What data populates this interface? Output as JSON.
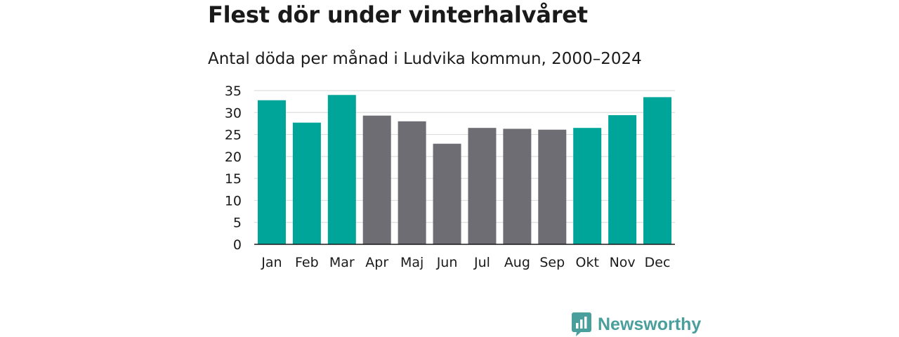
{
  "chart_data": {
    "type": "bar",
    "title": "Flest dör under vinterhalvåret",
    "subtitle": "Antal döda per månad i Ludvika kommun, 2000–2024",
    "categories": [
      "Jan",
      "Feb",
      "Mar",
      "Apr",
      "Maj",
      "Jun",
      "Jul",
      "Aug",
      "Sep",
      "Okt",
      "Nov",
      "Dec"
    ],
    "values": [
      32.8,
      27.7,
      34.0,
      29.3,
      28.0,
      22.9,
      26.5,
      26.3,
      26.1,
      26.5,
      29.4,
      33.5
    ],
    "highlight": [
      true,
      true,
      true,
      false,
      false,
      false,
      false,
      false,
      false,
      true,
      true,
      true
    ],
    "ylim": [
      0,
      35
    ],
    "yticks": [
      0,
      5,
      10,
      15,
      20,
      25,
      30,
      35
    ],
    "grid": true,
    "colors": {
      "highlight": "#00a59a",
      "other": "#6d6d73",
      "grid": "#dddddd",
      "axis": "#1a1a1a"
    }
  },
  "brand": {
    "name": "Newsworthy",
    "logo_icon": "newsworthy-logo-icon",
    "color": "#4a9f9c"
  }
}
